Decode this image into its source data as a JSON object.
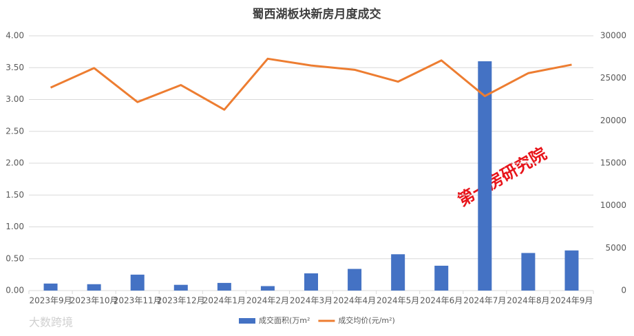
{
  "chart_data": {
    "type": "bar_line",
    "title": "蜀西湖板块新房月度成交",
    "categories": [
      "2023年9月",
      "2023年10月",
      "2023年11月",
      "2023年12月",
      "2024年1月",
      "2024年2月",
      "2024年3月",
      "2024年4月",
      "2024年5月",
      "2024年6月",
      "2024年7月",
      "2024年8月",
      "2024年9月"
    ],
    "series": [
      {
        "name": "成交面积(万m²",
        "type": "bar",
        "color": "#4472c4",
        "values": [
          0.11,
          0.1,
          0.25,
          0.09,
          0.12,
          0.07,
          0.27,
          0.34,
          0.57,
          0.39,
          3.6,
          0.59,
          0.63
        ]
      },
      {
        "name": "成交均价(元/m²)",
        "type": "line",
        "axis": "y2",
        "color": "#ed7d31",
        "values": [
          23900,
          26200,
          22200,
          24200,
          21300,
          27300,
          26500,
          26000,
          24600,
          27100,
          22900,
          25600,
          26600
        ]
      }
    ],
    "ylim": [
      0,
      4
    ],
    "yticks": [
      {
        "value": 0,
        "label": "0.00"
      },
      {
        "value": 0.5,
        "label": "0.50"
      },
      {
        "value": 1,
        "label": "1.00"
      },
      {
        "value": 1.5,
        "label": "1.50"
      },
      {
        "value": 2,
        "label": "2.00"
      },
      {
        "value": 2.5,
        "label": "2.50"
      },
      {
        "value": 3,
        "label": "3.00"
      },
      {
        "value": 3.5,
        "label": "3.50"
      },
      {
        "value": 4,
        "label": "4.00"
      }
    ],
    "y2lim": [
      0,
      30000
    ],
    "y2ticks": [
      0,
      5000,
      10000,
      15000,
      20000,
      25000,
      30000
    ],
    "grid": true,
    "legend": "bottom",
    "annotations": [
      "第一房研究院",
      "大数跨境"
    ]
  }
}
